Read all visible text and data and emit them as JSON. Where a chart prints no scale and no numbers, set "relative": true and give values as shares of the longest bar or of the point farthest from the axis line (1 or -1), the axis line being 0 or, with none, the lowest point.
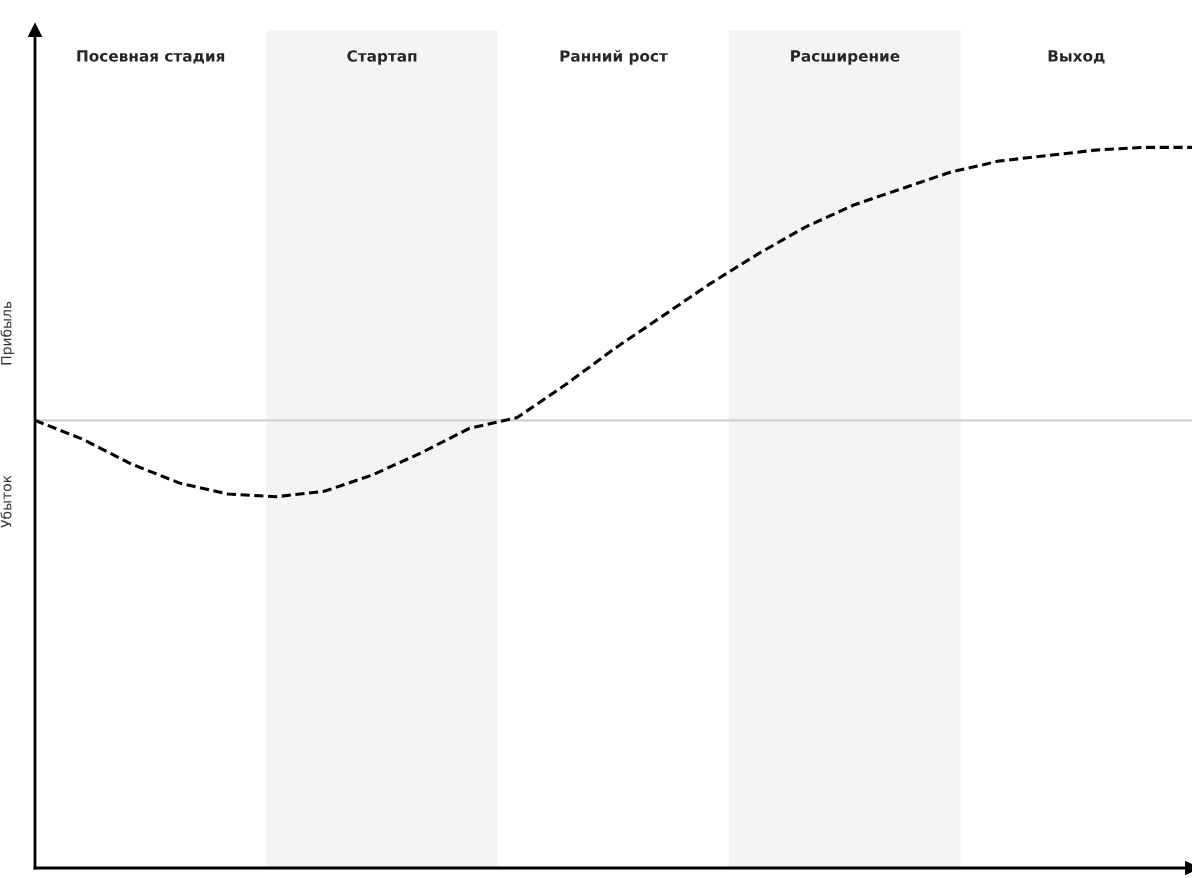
{
  "chart_data": {
    "type": "line",
    "relative": true,
    "tick_labels": false,
    "categories": [
      null,
      null,
      null,
      null,
      null,
      null,
      null,
      null,
      null,
      null,
      null,
      null,
      null,
      null,
      null,
      null,
      null,
      null,
      null,
      null,
      null,
      null,
      null,
      null,
      null
    ],
    "series": [
      {
        "color": "#000000",
        "line_style": "dashed",
        "values": [
          0,
          -0.07,
          -0.16,
          -0.23,
          -0.27,
          -0.28,
          -0.26,
          -0.2,
          -0.12,
          -0.03,
          0.01,
          0.13,
          0.26,
          0.38,
          0.5,
          0.61,
          0.71,
          0.79,
          0.85,
          0.91,
          0.95,
          0.97,
          0.99,
          1.0,
          1.0
        ]
      }
    ],
    "annotations": [
      "Прибыль",
      "Убыток",
      "Посевная стадия",
      "Стартап",
      "Ранний рост",
      "Расширение",
      "Выход"
    ]
  }
}
